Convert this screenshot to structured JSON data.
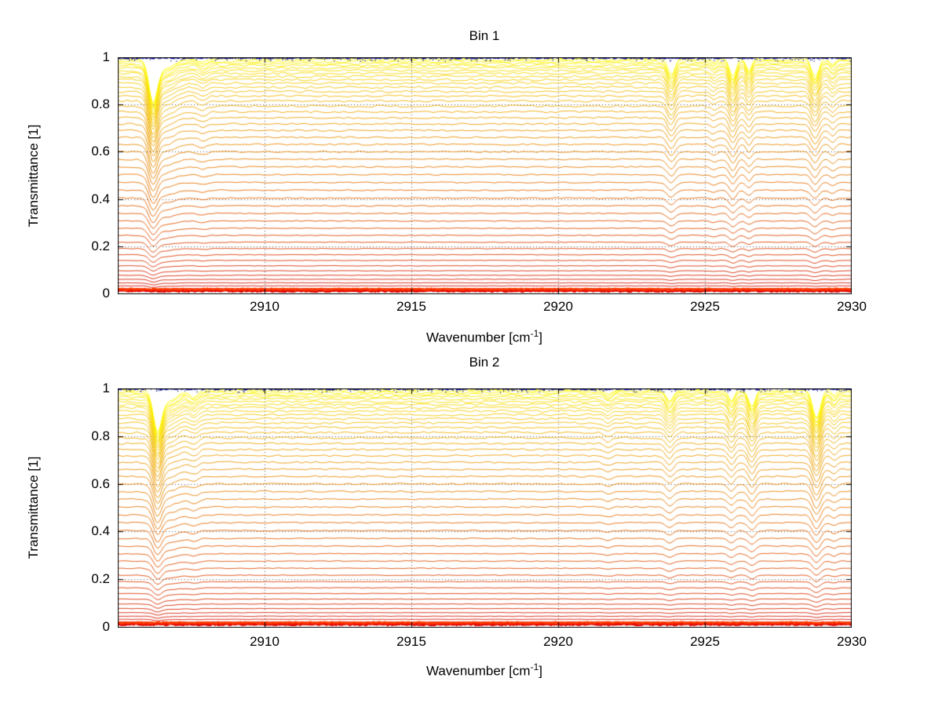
{
  "figure": {
    "background": "#ffffff",
    "axis_color": "#000000",
    "grid_style": "dotted"
  },
  "chart_data": [
    {
      "type": "line",
      "title": "Bin 1",
      "xlabel": "Wavenumber [cm⁻¹]",
      "xlabel_parts": {
        "pre": "Wavenumber [cm",
        "sup": "-1",
        "post": "]"
      },
      "ylabel": "Transmittance [1]",
      "xlim": [
        2905,
        2930
      ],
      "ylim": [
        0,
        1
      ],
      "xticks": [
        2910,
        2915,
        2920,
        2925,
        2930
      ],
      "yticks": [
        0,
        0.2,
        0.4,
        0.6,
        0.8,
        1
      ],
      "grid": "on",
      "legend": "none",
      "description": "Stack of transmittance spectra scaled from 1 down to 0; absorption dips near 2906.2, 2923.8, 2926.0, 2926.5 and 2928.8 cm-1; blue noisy reference band at T=1 and red saturated band near T=0.",
      "series_levels": [
        0.997,
        0.99,
        0.982,
        0.974,
        0.965,
        0.955,
        0.944,
        0.932,
        0.919,
        0.905,
        0.89,
        0.873,
        0.855,
        0.836,
        0.815,
        0.793,
        0.769,
        0.744,
        0.718,
        0.69,
        0.661,
        0.631,
        0.6,
        0.568,
        0.536,
        0.503,
        0.47,
        0.437,
        0.404,
        0.371,
        0.339,
        0.307,
        0.276,
        0.246,
        0.217,
        0.19,
        0.164,
        0.14,
        0.117,
        0.096,
        0.077,
        0.06,
        0.045,
        0.032,
        0.021
      ],
      "absorption_dips": [
        {
          "center": 2906.2,
          "width": 0.14,
          "depth": 0.16
        },
        {
          "center": 2906.55,
          "width": 0.35,
          "depth": 0.05
        },
        {
          "center": 2907.9,
          "width": 0.15,
          "depth": 0.02
        },
        {
          "center": 2923.85,
          "width": 0.13,
          "depth": 0.07
        },
        {
          "center": 2925.3,
          "width": 0.1,
          "depth": 0.02
        },
        {
          "center": 2925.95,
          "width": 0.12,
          "depth": 0.08
        },
        {
          "center": 2926.5,
          "width": 0.1,
          "depth": 0.05
        },
        {
          "center": 2928.75,
          "width": 0.13,
          "depth": 0.08
        },
        {
          "center": 2929.35,
          "width": 0.1,
          "depth": 0.03
        }
      ],
      "top_band": {
        "level": 1.0,
        "color": "#00008B"
      },
      "bottom_band": {
        "level": 0.013,
        "color": "#E81400"
      },
      "colormap": {
        "start": "#FFFF00",
        "end": "#D40A00"
      },
      "seed": 7
    },
    {
      "type": "line",
      "title": "Bin 2",
      "xlabel": "Wavenumber [cm⁻¹]",
      "xlabel_parts": {
        "pre": "Wavenumber [cm",
        "sup": "-1",
        "post": "]"
      },
      "ylabel": "Transmittance [1]",
      "xlim": [
        2905,
        2930
      ],
      "ylim": [
        0,
        1
      ],
      "xticks": [
        2910,
        2915,
        2920,
        2925,
        2930
      ],
      "yticks": [
        0,
        0.2,
        0.4,
        0.6,
        0.8,
        1
      ],
      "grid": "on",
      "legend": "none",
      "description": "Same stacked transmittance representation as Bin 1 but with a stronger absorption feature near 2928.8 cm-1 and a double feature near 2926.6 cm-1.",
      "series_levels": [
        0.997,
        0.99,
        0.982,
        0.974,
        0.965,
        0.955,
        0.944,
        0.932,
        0.919,
        0.905,
        0.89,
        0.873,
        0.855,
        0.836,
        0.815,
        0.793,
        0.769,
        0.744,
        0.718,
        0.69,
        0.661,
        0.631,
        0.6,
        0.568,
        0.536,
        0.503,
        0.47,
        0.437,
        0.404,
        0.371,
        0.339,
        0.307,
        0.276,
        0.246,
        0.217,
        0.19,
        0.164,
        0.14,
        0.117,
        0.096,
        0.077,
        0.06,
        0.045,
        0.032,
        0.021
      ],
      "absorption_dips": [
        {
          "center": 2906.35,
          "width": 0.14,
          "depth": 0.15
        },
        {
          "center": 2906.7,
          "width": 0.35,
          "depth": 0.05
        },
        {
          "center": 2907.6,
          "width": 0.15,
          "depth": 0.03
        },
        {
          "center": 2921.7,
          "width": 0.12,
          "depth": 0.02
        },
        {
          "center": 2923.8,
          "width": 0.13,
          "depth": 0.05
        },
        {
          "center": 2925.9,
          "width": 0.11,
          "depth": 0.05
        },
        {
          "center": 2926.6,
          "width": 0.12,
          "depth": 0.07
        },
        {
          "center": 2928.8,
          "width": 0.14,
          "depth": 0.12
        },
        {
          "center": 2929.4,
          "width": 0.1,
          "depth": 0.03
        }
      ],
      "top_band": {
        "level": 1.0,
        "color": "#00008B"
      },
      "bottom_band": {
        "level": 0.013,
        "color": "#E81400"
      },
      "colormap": {
        "start": "#FFFF00",
        "end": "#D40A00"
      },
      "seed": 13
    }
  ]
}
